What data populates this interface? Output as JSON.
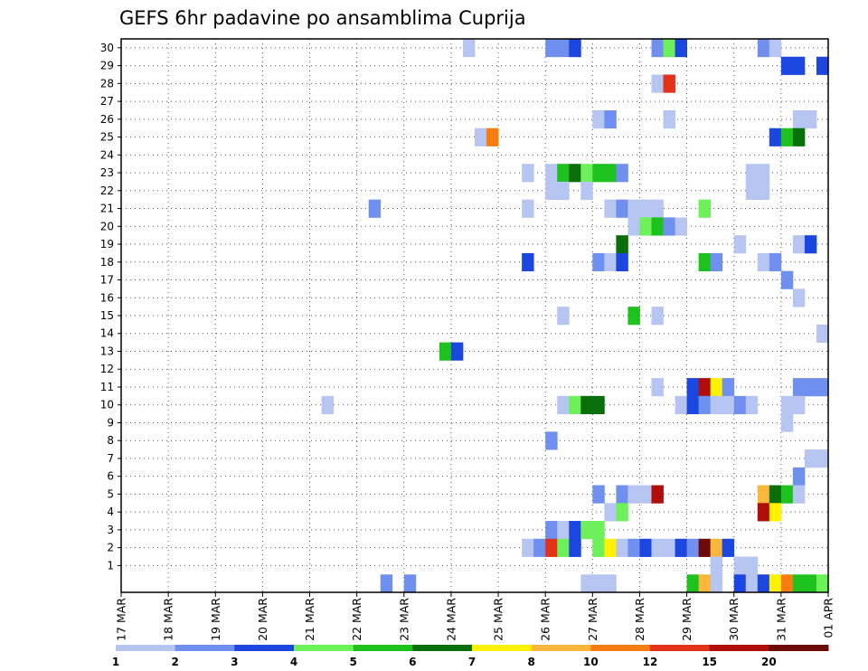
{
  "chart_data": {
    "type": "heatmap",
    "title": "GEFS 6hr padavine po ansamblima Cuprija",
    "xlabel": "",
    "ylabel": "",
    "x_ticks": [
      "17 MAR",
      "18 MAR",
      "19 MAR",
      "20 MAR",
      "21 MAR",
      "22 MAR",
      "23 MAR",
      "24 MAR",
      "25 MAR",
      "26 MAR",
      "27 MAR",
      "28 MAR",
      "29 MAR",
      "30 MAR",
      "31 MAR",
      "01 APR"
    ],
    "y_ticks": [
      "1",
      "2",
      "3",
      "4",
      "5",
      "6",
      "7",
      "8",
      "9",
      "10",
      "11",
      "12",
      "13",
      "14",
      "15",
      "16",
      "17",
      "18",
      "19",
      "20",
      "21",
      "22",
      "23",
      "24",
      "25",
      "26",
      "27",
      "28",
      "29",
      "30"
    ],
    "y_range": [
      0,
      30
    ],
    "x_range_steps": [
      0,
      60
    ],
    "steps_per_day": 4,
    "grid": true,
    "legend": {
      "position": "bottom",
      "thresholds": [
        "1",
        "2",
        "3",
        "4",
        "5",
        "6",
        "7",
        "8",
        "10",
        "12",
        "15",
        "20"
      ],
      "colors": [
        "#b7c5f2",
        "#6f90ee",
        "#1c46e0",
        "#6ef05a",
        "#1dc21e",
        "#0a6e0b",
        "#fff200",
        "#fbb73c",
        "#f77d11",
        "#e3311a",
        "#b00d0b",
        "#6a0b08"
      ]
    },
    "cells_note": "Each cell: [member, step, level]; step = 6-hour interval from 17 MAR 00z, level indexes legend.colors",
    "cells": [
      [
        30,
        29,
        1
      ],
      [
        30,
        36,
        2
      ],
      [
        30,
        37,
        2
      ],
      [
        30,
        38,
        3
      ],
      [
        30,
        45,
        2
      ],
      [
        30,
        46,
        4
      ],
      [
        30,
        47,
        3
      ],
      [
        30,
        54,
        2
      ],
      [
        30,
        55,
        1
      ],
      [
        29,
        56,
        3
      ],
      [
        29,
        57,
        3
      ],
      [
        29,
        59,
        3
      ],
      [
        28,
        45,
        1
      ],
      [
        28,
        46,
        10
      ],
      [
        26,
        40,
        1
      ],
      [
        26,
        41,
        2
      ],
      [
        26,
        46,
        1
      ],
      [
        26,
        57,
        1
      ],
      [
        26,
        58,
        1
      ],
      [
        25,
        30,
        1
      ],
      [
        25,
        31,
        9
      ],
      [
        25,
        55,
        3
      ],
      [
        25,
        56,
        5
      ],
      [
        25,
        57,
        6
      ],
      [
        23,
        34,
        1
      ],
      [
        23,
        36,
        1
      ],
      [
        23,
        37,
        5
      ],
      [
        23,
        38,
        6
      ],
      [
        23,
        39,
        4
      ],
      [
        23,
        40,
        5
      ],
      [
        23,
        41,
        5
      ],
      [
        23,
        42,
        2
      ],
      [
        23,
        53,
        1
      ],
      [
        23,
        54,
        1
      ],
      [
        22,
        36,
        1
      ],
      [
        22,
        37,
        1
      ],
      [
        22,
        39,
        1
      ],
      [
        22,
        53,
        1
      ],
      [
        22,
        54,
        1
      ],
      [
        21,
        21,
        2
      ],
      [
        21,
        34,
        1
      ],
      [
        21,
        41,
        1
      ],
      [
        21,
        42,
        2
      ],
      [
        21,
        43,
        1
      ],
      [
        21,
        44,
        1
      ],
      [
        21,
        45,
        1
      ],
      [
        21,
        49,
        4
      ],
      [
        20,
        43,
        1
      ],
      [
        20,
        44,
        4
      ],
      [
        20,
        45,
        5
      ],
      [
        20,
        46,
        2
      ],
      [
        20,
        47,
        1
      ],
      [
        19,
        42,
        6
      ],
      [
        19,
        52,
        1
      ],
      [
        19,
        57,
        1
      ],
      [
        19,
        58,
        3
      ],
      [
        18,
        34,
        3
      ],
      [
        18,
        40,
        2
      ],
      [
        18,
        41,
        1
      ],
      [
        18,
        42,
        3
      ],
      [
        18,
        49,
        5
      ],
      [
        18,
        50,
        2
      ],
      [
        18,
        54,
        1
      ],
      [
        18,
        55,
        2
      ],
      [
        17,
        56,
        2
      ],
      [
        16,
        57,
        1
      ],
      [
        15,
        37,
        1
      ],
      [
        15,
        43,
        5
      ],
      [
        15,
        45,
        1
      ],
      [
        14,
        59,
        1
      ],
      [
        13,
        27,
        5
      ],
      [
        13,
        28,
        3
      ],
      [
        11,
        45,
        1
      ],
      [
        11,
        48,
        3
      ],
      [
        11,
        49,
        11
      ],
      [
        11,
        50,
        7
      ],
      [
        11,
        51,
        2
      ],
      [
        11,
        57,
        2
      ],
      [
        11,
        58,
        2
      ],
      [
        11,
        59,
        2
      ],
      [
        10,
        17,
        1
      ],
      [
        10,
        37,
        1
      ],
      [
        10,
        38,
        4
      ],
      [
        10,
        39,
        6
      ],
      [
        10,
        40,
        6
      ],
      [
        10,
        47,
        1
      ],
      [
        10,
        48,
        3
      ],
      [
        10,
        49,
        2
      ],
      [
        10,
        50,
        1
      ],
      [
        10,
        51,
        1
      ],
      [
        10,
        52,
        2
      ],
      [
        10,
        53,
        1
      ],
      [
        10,
        56,
        1
      ],
      [
        10,
        57,
        1
      ],
      [
        9,
        56,
        1
      ],
      [
        8,
        36,
        2
      ],
      [
        7,
        58,
        1
      ],
      [
        7,
        59,
        1
      ],
      [
        6,
        57,
        2
      ],
      [
        5,
        40,
        2
      ],
      [
        5,
        42,
        2
      ],
      [
        5,
        43,
        1
      ],
      [
        5,
        44,
        1
      ],
      [
        5,
        45,
        11
      ],
      [
        5,
        54,
        8
      ],
      [
        5,
        55,
        6
      ],
      [
        5,
        56,
        5
      ],
      [
        5,
        57,
        1
      ],
      [
        4,
        41,
        1
      ],
      [
        4,
        42,
        4
      ],
      [
        4,
        54,
        11
      ],
      [
        4,
        55,
        7
      ],
      [
        3,
        36,
        2
      ],
      [
        3,
        37,
        1
      ],
      [
        3,
        38,
        3
      ],
      [
        3,
        39,
        4
      ],
      [
        3,
        40,
        4
      ],
      [
        2,
        34,
        1
      ],
      [
        2,
        35,
        2
      ],
      [
        2,
        36,
        10
      ],
      [
        2,
        37,
        4
      ],
      [
        2,
        38,
        3
      ],
      [
        2,
        40,
        4
      ],
      [
        2,
        41,
        7
      ],
      [
        2,
        42,
        1
      ],
      [
        2,
        43,
        2
      ],
      [
        2,
        44,
        3
      ],
      [
        2,
        45,
        1
      ],
      [
        2,
        46,
        1
      ],
      [
        2,
        47,
        3
      ],
      [
        2,
        48,
        2
      ],
      [
        2,
        49,
        12
      ],
      [
        2,
        50,
        8
      ],
      [
        2,
        51,
        3
      ],
      [
        1,
        50,
        1
      ],
      [
        1,
        52,
        1
      ],
      [
        1,
        53,
        1
      ],
      [
        0,
        22,
        2
      ],
      [
        0,
        24,
        2
      ],
      [
        0,
        39,
        1
      ],
      [
        0,
        40,
        1
      ],
      [
        0,
        41,
        1
      ],
      [
        0,
        48,
        5
      ],
      [
        0,
        49,
        8
      ],
      [
        0,
        50,
        1
      ],
      [
        0,
        52,
        3
      ],
      [
        0,
        53,
        1
      ],
      [
        0,
        54,
        3
      ],
      [
        0,
        55,
        7
      ],
      [
        0,
        56,
        9
      ],
      [
        0,
        57,
        5
      ],
      [
        0,
        58,
        5
      ],
      [
        0,
        59,
        4
      ]
    ]
  }
}
